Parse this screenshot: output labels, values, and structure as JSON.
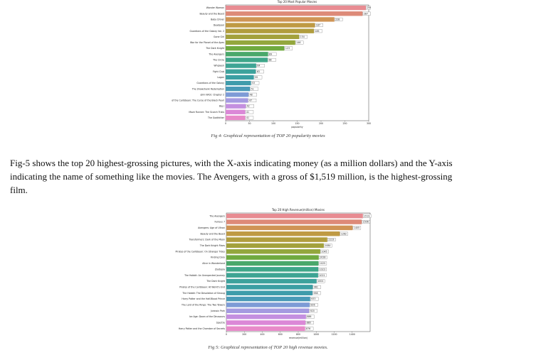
{
  "chart_data": [
    {
      "type": "bar",
      "orientation": "horizontal",
      "title": "Top 20 Most Popular Movies",
      "xlabel": "popularity",
      "ylabel": "",
      "xlim": [
        0,
        300
      ],
      "xticks": [
        0,
        50,
        100,
        150,
        200,
        250,
        300
      ],
      "grid": false,
      "categories": [
        "Wonder Woman",
        "Beauty and the Beast",
        "Baby Driver",
        "Deadpool",
        "Guardians of the Galaxy Vol. 2",
        "Gone Girl",
        "War for the Planet of the Apes",
        "The Dark Knight",
        "The Avengers",
        "The Circle",
        "Whiplash",
        "Fight Club",
        "Logan",
        "Guardians of the Galaxy",
        "The Shawshank Redemption",
        "John Wick: Chapter 2",
        "Pirates of the Caribbean: The Curse of the Black Pearl",
        "Big J",
        "Maze Runner: The Scorch Trials",
        "The Godfather"
      ],
      "values": [
        294,
        287,
        228,
        187,
        185,
        154,
        146,
        123,
        89,
        88,
        64,
        63,
        59,
        53,
        51,
        48,
        47,
        42,
        41,
        41
      ],
      "colors": [
        "#e88c92",
        "#dd8a78",
        "#cf9455",
        "#bf9a44",
        "#b19d3e",
        "#a3a13c",
        "#93a73d",
        "#6faa3f",
        "#4aa86b",
        "#3fa689",
        "#3ea494",
        "#3da29c",
        "#3c9fa3",
        "#3f9cab",
        "#4a9ab7",
        "#7d9bd6",
        "#a59ae0",
        "#c48fe0",
        "#db88d7",
        "#e88ac9"
      ]
    },
    {
      "type": "bar",
      "orientation": "horizontal",
      "title": "Top 20 High Revenue(million) Movies",
      "xlabel": "revenue(million)",
      "ylabel": "",
      "xlim": [
        0,
        1600
      ],
      "xticks": [
        0,
        200,
        400,
        600,
        800,
        1000,
        1200,
        1400
      ],
      "grid": false,
      "categories": [
        "The Avengers",
        "Furious 7",
        "Avengers: Age of Ultron",
        "Beauty and the Beast",
        "Transformers: Dark of the Moon",
        "The Dark Knight Rises",
        "Pirates of the Caribbean: On Stranger Tides",
        "Finding Dory",
        "Alice in Wonderland",
        "Zootopia",
        "The Hobbit: An Unexpected Journey",
        "The Dark Knight",
        "Pirates of the Caribbean: At World's End",
        "The Hobbit: The Desolation of Smaug",
        "Harry Potter and the Half-Blood Prince",
        "The Lord of the Rings: The Two Towers",
        "Jurassic Park",
        "Ice Age: Dawn of the Dinosaurs",
        "Spectre",
        "Harry Potter and the Chamber of Secrets"
      ],
      "values": [
        1519,
        1506,
        1405,
        1262,
        1123,
        1084,
        1045,
        1028,
        1025,
        1023,
        1021,
        1004,
        961,
        958,
        933,
        926,
        920,
        886,
        880,
        876
      ],
      "colors": [
        "#e88c92",
        "#dd8a78",
        "#cf9455",
        "#bf9a44",
        "#b19d3e",
        "#a3a13c",
        "#93a73d",
        "#6faa3f",
        "#4aa86b",
        "#3fa689",
        "#3ea494",
        "#3da29c",
        "#3c9fa3",
        "#3f9cab",
        "#4a9ab7",
        "#7d9bd6",
        "#a59ae0",
        "#c48fe0",
        "#db88d7",
        "#e88ac9"
      ]
    }
  ],
  "captions": {
    "fig4": "Fig 4: Graphical representation of TOP 20 popularity movies",
    "fig5": "Fig 5: Graphical representation of TOP 20 high revenue movies."
  },
  "paragraph": {
    "line1": "Fig-5 shows the top 20 highest-grossing pictures, with the X-axis indicating money (as a million dollars) and the Y-axis",
    "line2": "indicating the name of something like the movies.  The   Avengers,  with  a  gross  of $1,519 million, is the highest-grossing",
    "line3": "film."
  }
}
